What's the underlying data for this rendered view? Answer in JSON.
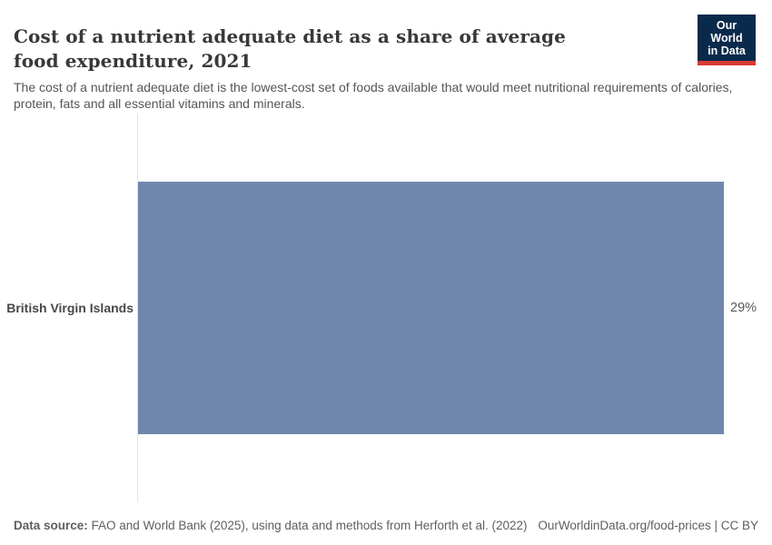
{
  "header": {
    "title": "Cost of a nutrient adequate diet as a share of average food expenditure, 2021",
    "subtitle": "The cost of a nutrient adequate diet is the lowest-cost set of foods available that would meet nutritional requirements of calories, protein, fats and all essential vitamins and minerals.",
    "logo": {
      "line1": "Our World",
      "line2": "in Data"
    }
  },
  "chart_data": {
    "type": "bar",
    "orientation": "horizontal",
    "title": "Cost of a nutrient adequate diet as a share of average food expenditure, 2021",
    "categories": [
      "British Virgin Islands"
    ],
    "values": [
      29
    ],
    "value_labels": [
      "29%"
    ],
    "unit": "%",
    "xlabel": "",
    "ylabel": "",
    "xlim": [
      0,
      29
    ],
    "grid": false,
    "legend": "none"
  },
  "footer": {
    "source_label": "Data source:",
    "source_text": " FAO and World Bank (2025), using data and methods from Herforth et al. (2022)",
    "credit": "OurWorldinData.org/food-prices | CC BY"
  },
  "colors": {
    "bar": "#6f87ad",
    "logo_background": "#0a2a4c",
    "logo_accent": "#d93a34",
    "axis_line": "#e2e2e2"
  }
}
